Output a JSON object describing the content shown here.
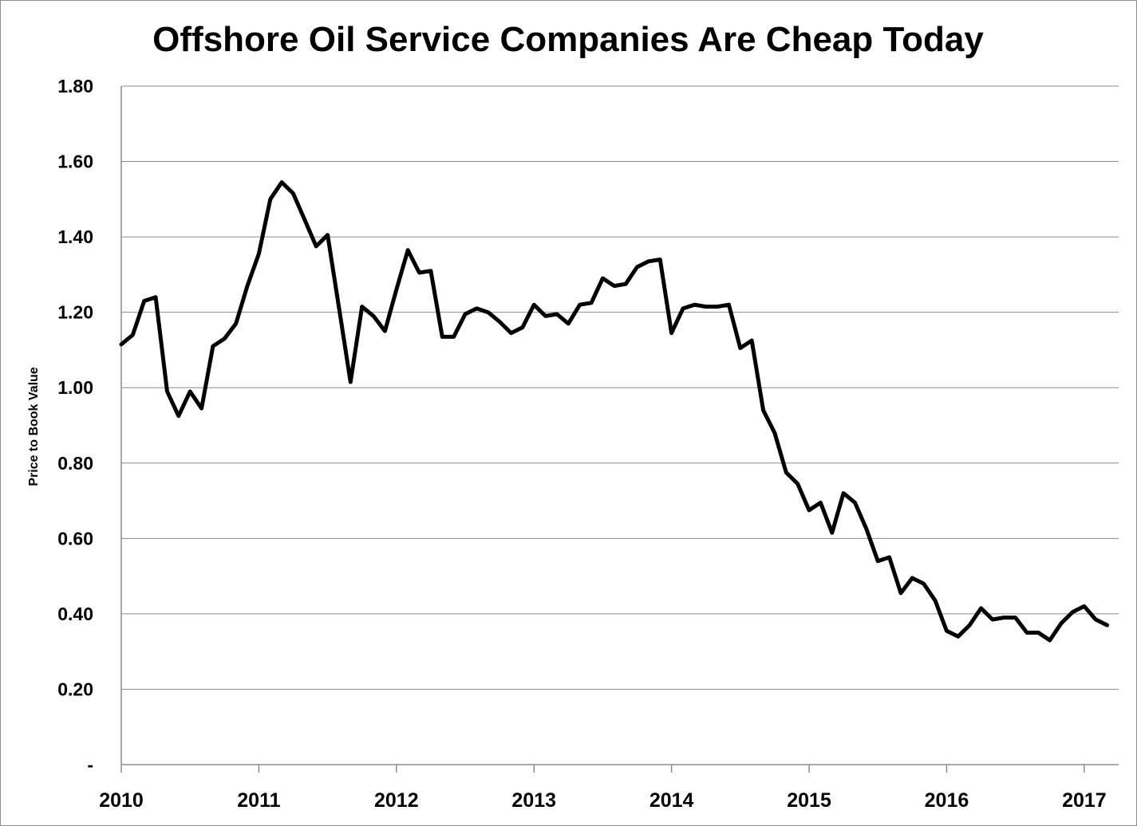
{
  "chart_data": {
    "type": "line",
    "title": "Offshore Oil Service Companies Are Cheap Today",
    "xlabel": "",
    "ylabel": "Price to Book Value",
    "x_start_year": 2010,
    "x_step_years": 0.08333,
    "xlim": [
      2010,
      2017.25
    ],
    "ylim": [
      0,
      1.8
    ],
    "y_ticks": [
      0,
      0.2,
      0.4,
      0.6,
      0.8,
      1.0,
      1.2,
      1.4,
      1.6,
      1.8
    ],
    "y_tick_labels": [
      "-",
      "0.20",
      "0.40",
      "0.60",
      "0.80",
      "1.00",
      "1.20",
      "1.40",
      "1.60",
      "1.80"
    ],
    "x_tick_labels": [
      "2010",
      "2011",
      "2012",
      "2013",
      "2014",
      "2015",
      "2016",
      "2017"
    ],
    "grid": true,
    "legend": "none",
    "series": [
      {
        "color": "#000000",
        "values": [
          1.115,
          1.14,
          1.23,
          1.24,
          0.99,
          0.925,
          0.99,
          0.945,
          1.11,
          1.13,
          1.17,
          1.27,
          1.355,
          1.5,
          1.545,
          1.515,
          1.445,
          1.375,
          1.405,
          1.21,
          1.015,
          1.215,
          1.19,
          1.15,
          1.26,
          1.365,
          1.305,
          1.31,
          1.135,
          1.135,
          1.195,
          1.21,
          1.2,
          1.175,
          1.145,
          1.16,
          1.22,
          1.19,
          1.195,
          1.17,
          1.22,
          1.225,
          1.29,
          1.27,
          1.275,
          1.32,
          1.335,
          1.34,
          1.145,
          1.21,
          1.22,
          1.215,
          1.215,
          1.22,
          1.105,
          1.125,
          0.94,
          0.88,
          0.775,
          0.745,
          0.675,
          0.695,
          0.615,
          0.72,
          0.695,
          0.625,
          0.54,
          0.55,
          0.455,
          0.495,
          0.48,
          0.435,
          0.355,
          0.34,
          0.37,
          0.415,
          0.385,
          0.39,
          0.39,
          0.35,
          0.35,
          0.33,
          0.375,
          0.405,
          0.42,
          0.385,
          0.37
        ]
      }
    ]
  }
}
